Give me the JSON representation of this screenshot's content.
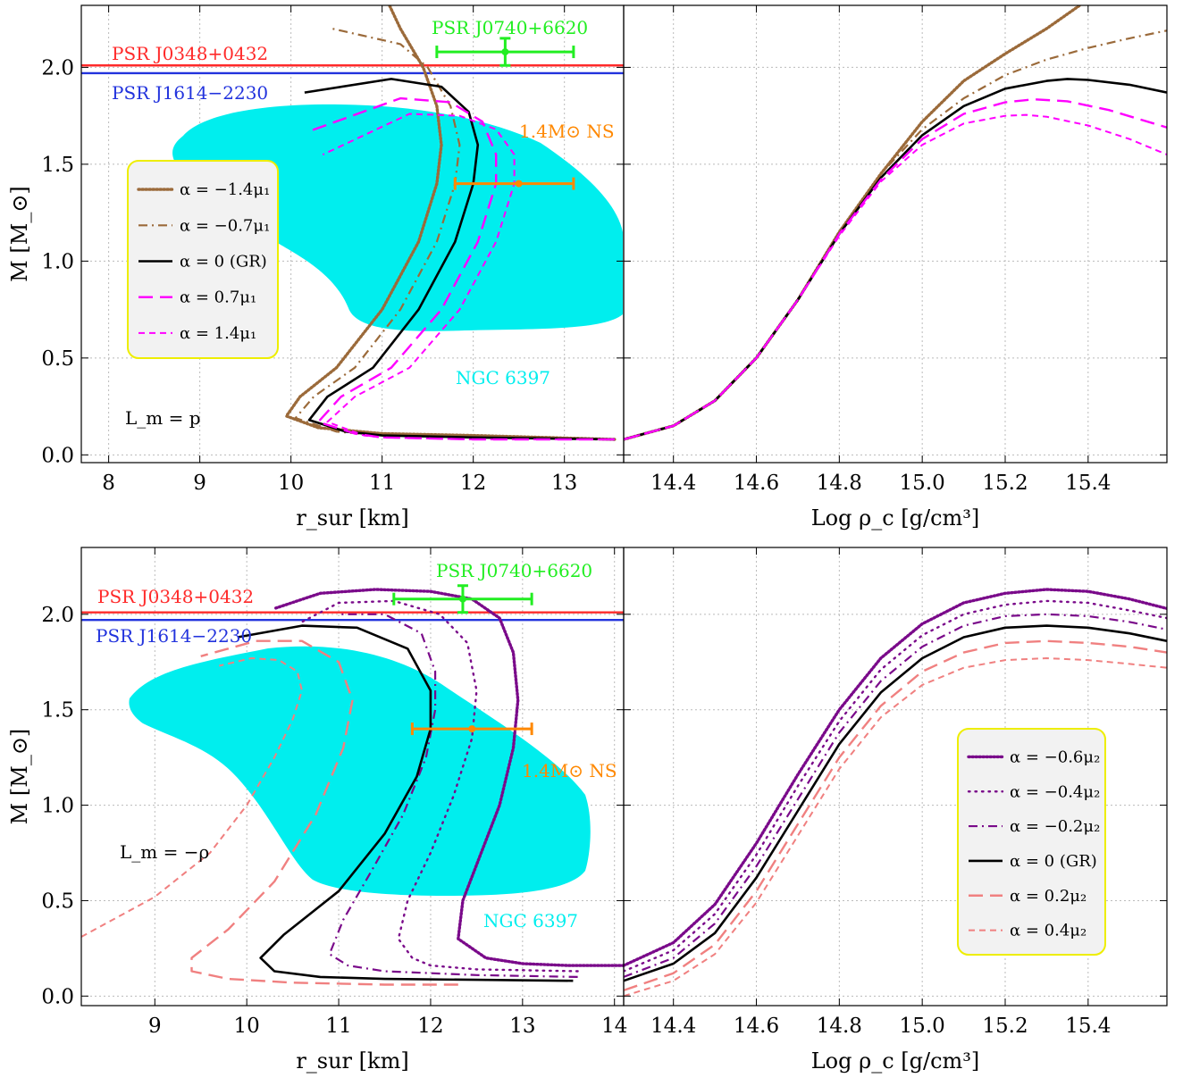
{
  "colors": {
    "red": "#ff2a2a",
    "blue": "#2233dd",
    "green": "#22ee22",
    "orange": "#ff8800",
    "cyan": "#00eeee",
    "brown": "#9b6a3a",
    "black": "#000000",
    "magenta": "#ff00ff",
    "purple": "#7a0a8a",
    "salmon": "#f08080",
    "legendBorder": "#eeee00",
    "legendFill": "#f2f2f2"
  },
  "chart_data": [
    {
      "type": "line",
      "xlabel": "r_sur [km]",
      "ylabel": "M [M_⊙]",
      "xlim": [
        7.7,
        13.65
      ],
      "ylim": [
        -0.04,
        2.32
      ],
      "xticks": [
        "8",
        "9",
        "10",
        "11",
        "12",
        "13"
      ],
      "yticks": [
        "0.0",
        "0.5",
        "1.0",
        "1.5",
        "2.0"
      ],
      "grid": true,
      "hlines": [
        {
          "label": "PSR J0348+0432",
          "value": 2.01,
          "color": "#ff2a2a"
        },
        {
          "label": "PSR J1614−2230",
          "value": 1.97,
          "color": "#2233dd"
        }
      ],
      "error_bars": [
        {
          "label": "PSR J0740+6620",
          "x": 12.35,
          "y": 2.08,
          "xerr": [
            11.6,
            13.1
          ],
          "yerr": [
            2.01,
            2.15
          ],
          "color": "#22ee22"
        },
        {
          "label": "1.4M⊙ NS",
          "x": 12.5,
          "y": 1.4,
          "xerr": [
            11.8,
            13.1
          ],
          "color": "#ff8800"
        }
      ],
      "region": {
        "label": "NGC 6397",
        "color": "#00eeee"
      },
      "annotation": "L_m = p",
      "legend_placement": "left",
      "series": [
        {
          "name": "α = −1.4μ₁",
          "style": "dotted",
          "color": "#9b6a3a",
          "x": [
            13.55,
            12.0,
            11.0,
            10.3,
            9.95,
            10.1,
            10.5,
            11.0,
            11.4,
            11.6,
            11.65,
            11.6,
            11.45,
            11.2,
            11.05
          ],
          "y": [
            0.08,
            0.1,
            0.11,
            0.14,
            0.2,
            0.3,
            0.45,
            0.75,
            1.1,
            1.4,
            1.6,
            1.8,
            2.0,
            2.2,
            2.35
          ]
        },
        {
          "name": "α = −0.7μ₁",
          "style": "dashdot",
          "color": "#9b6a3a",
          "x": [
            13.55,
            12.0,
            11.0,
            10.5,
            10.05,
            10.25,
            10.7,
            11.2,
            11.6,
            11.8,
            11.85,
            11.75,
            11.5,
            11.2,
            10.45
          ],
          "y": [
            0.08,
            0.09,
            0.1,
            0.12,
            0.19,
            0.3,
            0.45,
            0.75,
            1.1,
            1.4,
            1.6,
            1.8,
            2.0,
            2.12,
            2.2
          ]
        },
        {
          "name": "α = 0 (GR)",
          "style": "solid",
          "color": "#000000",
          "x": [
            13.55,
            12.0,
            11.0,
            10.6,
            10.2,
            10.4,
            10.9,
            11.4,
            11.8,
            12.0,
            12.05,
            11.95,
            11.65,
            11.1,
            10.15
          ],
          "y": [
            0.08,
            0.09,
            0.1,
            0.12,
            0.18,
            0.3,
            0.45,
            0.75,
            1.1,
            1.4,
            1.6,
            1.77,
            1.9,
            1.94,
            1.87
          ]
        },
        {
          "name": "α = 0.7μ₁",
          "style": "dashed",
          "color": "#ff00ff",
          "x": [
            13.55,
            12.0,
            11.0,
            10.7,
            10.3,
            10.55,
            11.1,
            11.65,
            12.05,
            12.25,
            12.25,
            12.1,
            11.75,
            11.2,
            10.2
          ],
          "y": [
            0.08,
            0.08,
            0.09,
            0.11,
            0.17,
            0.3,
            0.45,
            0.75,
            1.1,
            1.4,
            1.55,
            1.72,
            1.82,
            1.84,
            1.67
          ]
        },
        {
          "name": "α = 1.4μ₁",
          "style": "shortdash",
          "color": "#ff00ff",
          "x": [
            13.55,
            12.0,
            11.0,
            10.8,
            10.4,
            10.7,
            11.3,
            11.85,
            12.25,
            12.45,
            12.45,
            12.25,
            11.85,
            11.3,
            10.35
          ],
          "y": [
            0.08,
            0.08,
            0.09,
            0.1,
            0.17,
            0.3,
            0.45,
            0.75,
            1.1,
            1.4,
            1.55,
            1.68,
            1.75,
            1.76,
            1.55
          ]
        }
      ]
    },
    {
      "type": "line",
      "xlabel": "Log ρ_c [g/cm³]",
      "ylabel": "",
      "xlim": [
        14.28,
        15.59
      ],
      "ylim": [
        -0.04,
        2.32
      ],
      "xticks": [
        "14.4",
        "14.6",
        "14.8",
        "15.0",
        "15.2",
        "15.4"
      ],
      "grid": true,
      "series": [
        {
          "name": "α = −1.4μ₁",
          "style": "dotted",
          "color": "#9b6a3a",
          "x": [
            14.28,
            14.4,
            14.5,
            14.6,
            14.7,
            14.8,
            14.9,
            15.0,
            15.1,
            15.2,
            15.3,
            15.38
          ],
          "y": [
            0.08,
            0.15,
            0.28,
            0.5,
            0.8,
            1.15,
            1.45,
            1.72,
            1.93,
            2.07,
            2.2,
            2.32
          ]
        },
        {
          "name": "α = −0.7μ₁",
          "style": "dashdot",
          "color": "#9b6a3a",
          "x": [
            14.28,
            14.4,
            14.5,
            14.6,
            14.7,
            14.8,
            14.9,
            15.0,
            15.1,
            15.2,
            15.3,
            15.4,
            15.5,
            15.59
          ],
          "y": [
            0.08,
            0.15,
            0.28,
            0.5,
            0.8,
            1.15,
            1.45,
            1.68,
            1.84,
            1.96,
            2.04,
            2.1,
            2.15,
            2.19
          ]
        },
        {
          "name": "α = 0 (GR)",
          "style": "solid",
          "color": "#000000",
          "x": [
            14.28,
            14.4,
            14.5,
            14.6,
            14.7,
            14.8,
            14.9,
            15.0,
            15.1,
            15.2,
            15.3,
            15.35,
            15.4,
            15.5,
            15.59
          ],
          "y": [
            0.08,
            0.15,
            0.28,
            0.5,
            0.8,
            1.14,
            1.43,
            1.65,
            1.8,
            1.89,
            1.93,
            1.94,
            1.935,
            1.91,
            1.87
          ]
        },
        {
          "name": "α = 0.7μ₁",
          "style": "dashed",
          "color": "#ff00ff",
          "x": [
            14.28,
            14.4,
            14.5,
            14.6,
            14.7,
            14.8,
            14.9,
            15.0,
            15.1,
            15.2,
            15.27,
            15.35,
            15.45,
            15.59
          ],
          "y": [
            0.08,
            0.15,
            0.28,
            0.5,
            0.8,
            1.14,
            1.42,
            1.63,
            1.76,
            1.82,
            1.835,
            1.825,
            1.78,
            1.69
          ]
        },
        {
          "name": "α = 1.4μ₁",
          "style": "shortdash",
          "color": "#ff00ff",
          "x": [
            14.28,
            14.4,
            14.5,
            14.6,
            14.7,
            14.8,
            14.9,
            15.0,
            15.1,
            15.2,
            15.25,
            15.3,
            15.4,
            15.5,
            15.59
          ],
          "y": [
            0.08,
            0.15,
            0.28,
            0.5,
            0.8,
            1.13,
            1.41,
            1.6,
            1.71,
            1.75,
            1.755,
            1.745,
            1.7,
            1.63,
            1.55
          ]
        }
      ]
    },
    {
      "type": "line",
      "xlabel": "r_sur [km]",
      "ylabel": "M [M_⊙]",
      "xlim": [
        8.2,
        14.1
      ],
      "ylim": [
        -0.05,
        2.35
      ],
      "xticks": [
        "9",
        "10",
        "11",
        "12",
        "13",
        "14"
      ],
      "yticks": [
        "0.0",
        "0.5",
        "1.0",
        "1.5",
        "2.0"
      ],
      "grid": true,
      "hlines": [
        {
          "label": "PSR J0348+0432",
          "value": 2.01,
          "color": "#ff2a2a"
        },
        {
          "label": "PSR J1614−2230",
          "value": 1.97,
          "color": "#2233dd"
        }
      ],
      "error_bars": [
        {
          "label": "PSR J0740+6620",
          "x": 12.35,
          "y": 2.08,
          "xerr": [
            11.6,
            13.1
          ],
          "yerr": [
            2.01,
            2.15
          ],
          "color": "#22ee22"
        },
        {
          "label": "1.4M⊙ NS",
          "x": 12.45,
          "y": 1.4,
          "xerr": [
            11.8,
            13.1
          ],
          "color": "#ff8800"
        }
      ],
      "region": {
        "label": "NGC 6397",
        "color": "#00eeee"
      },
      "annotation": "L_m = −ρ",
      "series": [
        {
          "name": "α = −0.6μ₂",
          "style": "dotted",
          "color": "#7a0a8a",
          "x": [
            14.1,
            13.5,
            13.0,
            12.6,
            12.3,
            12.35,
            12.55,
            12.75,
            12.9,
            12.95,
            12.9,
            12.75,
            12.45,
            12.0,
            11.4,
            10.8,
            10.3
          ],
          "y": [
            0.16,
            0.16,
            0.17,
            0.2,
            0.3,
            0.5,
            0.75,
            1.0,
            1.3,
            1.55,
            1.8,
            1.98,
            2.08,
            2.12,
            2.13,
            2.11,
            2.03
          ]
        },
        {
          "name": "α = −0.4μ₂",
          "style": "dotted-sparse",
          "color": "#7a0a8a",
          "x": [
            13.6,
            12.5,
            12.0,
            11.8,
            11.65,
            11.75,
            12.0,
            12.25,
            12.45,
            12.5,
            12.4,
            12.1,
            11.6,
            11.0,
            10.6
          ],
          "y": [
            0.13,
            0.14,
            0.16,
            0.2,
            0.3,
            0.5,
            0.75,
            1.05,
            1.35,
            1.6,
            1.85,
            2.0,
            2.07,
            2.06,
            1.96
          ]
        },
        {
          "name": "α = −0.2μ₂",
          "style": "dashdot",
          "color": "#7a0a8a",
          "x": [
            13.6,
            12.5,
            11.5,
            11.1,
            10.9,
            11.05,
            11.35,
            11.7,
            11.95,
            12.05,
            12.05,
            11.9,
            11.5,
            11.0
          ],
          "y": [
            0.1,
            0.11,
            0.13,
            0.16,
            0.22,
            0.4,
            0.65,
            0.95,
            1.25,
            1.5,
            1.7,
            1.9,
            2.0,
            2.0
          ]
        },
        {
          "name": "α = 0 (GR)",
          "style": "solid",
          "color": "#000000",
          "x": [
            13.55,
            12.5,
            11.5,
            10.8,
            10.3,
            10.15,
            10.4,
            11.0,
            11.5,
            11.85,
            12.0,
            12.0,
            11.75,
            11.2,
            10.6,
            9.9
          ],
          "y": [
            0.08,
            0.085,
            0.09,
            0.1,
            0.13,
            0.2,
            0.32,
            0.55,
            0.85,
            1.15,
            1.4,
            1.6,
            1.82,
            1.93,
            1.94,
            1.88
          ]
        },
        {
          "name": "α = 0.2μ₂",
          "style": "dashed",
          "color": "#f08080",
          "x": [
            12.3,
            11.5,
            10.5,
            9.8,
            9.4,
            9.4,
            9.8,
            10.3,
            10.75,
            11.05,
            11.15,
            11.0,
            10.6,
            10.1,
            9.5
          ],
          "y": [
            0.06,
            0.06,
            0.07,
            0.09,
            0.13,
            0.2,
            0.35,
            0.6,
            0.95,
            1.3,
            1.55,
            1.75,
            1.86,
            1.86,
            1.78
          ]
        },
        {
          "name": "α = 0.4μ₂",
          "style": "shortdash",
          "color": "#f08080",
          "x": [
            8.2,
            9.0,
            9.6,
            10.0,
            10.3,
            10.5,
            10.6,
            10.55,
            10.35,
            10.05,
            9.7
          ],
          "y": [
            0.31,
            0.52,
            0.75,
            1.0,
            1.25,
            1.45,
            1.6,
            1.7,
            1.76,
            1.77,
            1.73
          ]
        }
      ]
    },
    {
      "type": "line",
      "xlabel": "Log ρ_c [g/cm³]",
      "ylabel": "",
      "xlim": [
        14.28,
        15.59
      ],
      "ylim": [
        -0.05,
        2.35
      ],
      "xticks": [
        "14.4",
        "14.6",
        "14.8",
        "15.0",
        "15.2",
        "15.4"
      ],
      "grid": true,
      "legend_placement": "bottom-right",
      "series": [
        {
          "name": "α = −0.6μ₂",
          "style": "dotted",
          "color": "#7a0a8a",
          "x": [
            14.28,
            14.4,
            14.5,
            14.6,
            14.7,
            14.8,
            14.9,
            15.0,
            15.1,
            15.2,
            15.3,
            15.4,
            15.5,
            15.59
          ],
          "y": [
            0.16,
            0.28,
            0.48,
            0.8,
            1.16,
            1.5,
            1.77,
            1.95,
            2.06,
            2.11,
            2.13,
            2.12,
            2.08,
            2.03
          ]
        },
        {
          "name": "α = −0.4μ₂",
          "style": "dotted-sparse",
          "color": "#7a0a8a",
          "x": [
            14.28,
            14.4,
            14.5,
            14.6,
            14.7,
            14.8,
            14.9,
            15.0,
            15.1,
            15.2,
            15.3,
            15.4,
            15.5,
            15.59
          ],
          "y": [
            0.13,
            0.24,
            0.43,
            0.74,
            1.1,
            1.44,
            1.71,
            1.89,
            2.0,
            2.05,
            2.07,
            2.06,
            2.02,
            1.98
          ]
        },
        {
          "name": "α = −0.2μ₂",
          "style": "dashdot",
          "color": "#7a0a8a",
          "x": [
            14.28,
            14.4,
            14.5,
            14.6,
            14.7,
            14.8,
            14.9,
            15.0,
            15.1,
            15.2,
            15.3,
            15.4,
            15.5,
            15.59
          ],
          "y": [
            0.1,
            0.2,
            0.38,
            0.68,
            1.03,
            1.38,
            1.65,
            1.83,
            1.94,
            1.99,
            2.0,
            1.99,
            1.96,
            1.92
          ]
        },
        {
          "name": "α = 0 (GR)",
          "style": "solid",
          "color": "#000000",
          "x": [
            14.28,
            14.4,
            14.5,
            14.6,
            14.7,
            14.8,
            14.9,
            15.0,
            15.1,
            15.2,
            15.3,
            15.4,
            15.5,
            15.59
          ],
          "y": [
            0.08,
            0.17,
            0.33,
            0.62,
            0.97,
            1.32,
            1.59,
            1.77,
            1.88,
            1.93,
            1.94,
            1.93,
            1.9,
            1.86
          ]
        },
        {
          "name": "α = 0.2μ₂",
          "style": "dashed",
          "color": "#f08080",
          "x": [
            14.28,
            14.4,
            14.5,
            14.6,
            14.7,
            14.8,
            14.9,
            15.0,
            15.1,
            15.2,
            15.3,
            15.4,
            15.5,
            15.59
          ],
          "y": [
            0.03,
            0.12,
            0.27,
            0.55,
            0.9,
            1.25,
            1.52,
            1.7,
            1.8,
            1.85,
            1.86,
            1.85,
            1.83,
            1.8
          ]
        },
        {
          "name": "α = 0.4μ₂",
          "style": "shortdash",
          "color": "#f08080",
          "x": [
            14.28,
            14.4,
            14.5,
            14.6,
            14.7,
            14.8,
            14.9,
            15.0,
            15.1,
            15.2,
            15.3,
            15.4,
            15.5,
            15.59
          ],
          "y": [
            0.0,
            0.08,
            0.22,
            0.49,
            0.84,
            1.19,
            1.46,
            1.63,
            1.72,
            1.76,
            1.77,
            1.76,
            1.74,
            1.72
          ]
        }
      ]
    }
  ]
}
